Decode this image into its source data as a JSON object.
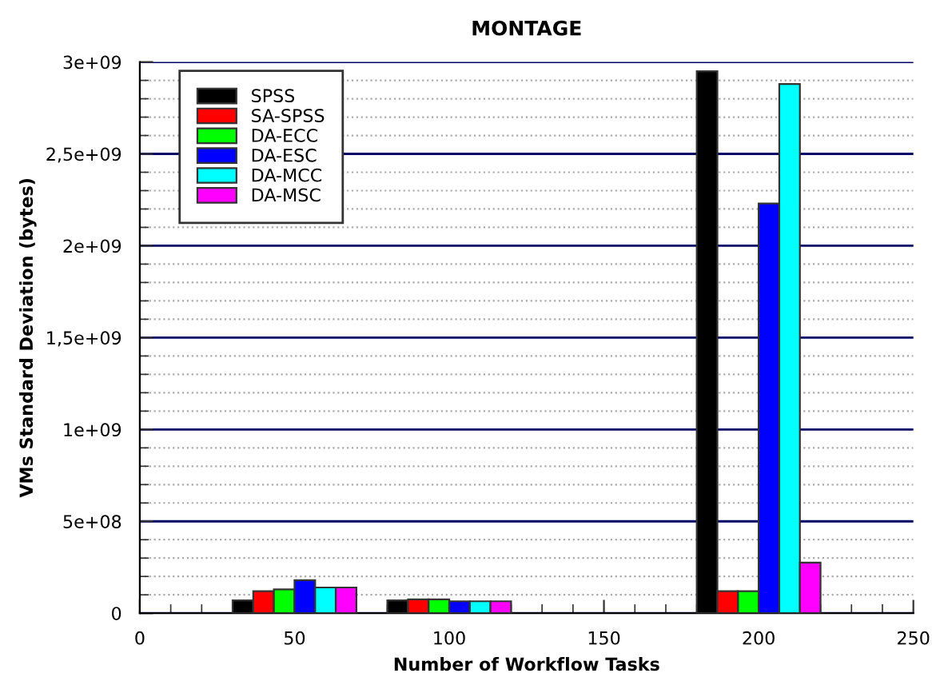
{
  "chart_data": {
    "type": "bar",
    "title": "MONTAGE",
    "xlabel": "Number of Workflow Tasks",
    "ylabel": "VMs Standard Deviation (bytes)",
    "x": [
      50,
      100,
      200
    ],
    "series": [
      {
        "name": "SPSS",
        "color": "#000000",
        "values": [
          70000000,
          70000000,
          2950000000
        ]
      },
      {
        "name": "SA-SPSS",
        "color": "#ff0000",
        "values": [
          120000000,
          75000000,
          120000000
        ]
      },
      {
        "name": "DA-ECC",
        "color": "#00ff00",
        "values": [
          130000000,
          75000000,
          120000000
        ]
      },
      {
        "name": "DA-ESC",
        "color": "#0000ff",
        "values": [
          180000000,
          65000000,
          2230000000
        ]
      },
      {
        "name": "DA-MCC",
        "color": "#00ffff",
        "values": [
          140000000,
          65000000,
          2880000000
        ]
      },
      {
        "name": "DA-MSC",
        "color": "#ff00ff",
        "values": [
          140000000,
          65000000,
          275000000
        ]
      }
    ],
    "xlim": [
      0,
      250
    ],
    "xticks": [
      0,
      50,
      100,
      150,
      200,
      250
    ],
    "ylim": [
      0,
      3000000000
    ],
    "yticks": [
      {
        "value": 0,
        "label": "0"
      },
      {
        "value": 500000000,
        "label": "5e+08"
      },
      {
        "value": 1000000000,
        "label": "1e+09"
      },
      {
        "value": 1500000000,
        "label": "1,5e+09"
      },
      {
        "value": 2000000000,
        "label": "2e+09"
      },
      {
        "value": 2500000000,
        "label": "2,5e+09"
      },
      {
        "value": 3000000000,
        "label": "3e+09"
      }
    ],
    "grid": "y",
    "legend": "top left"
  }
}
